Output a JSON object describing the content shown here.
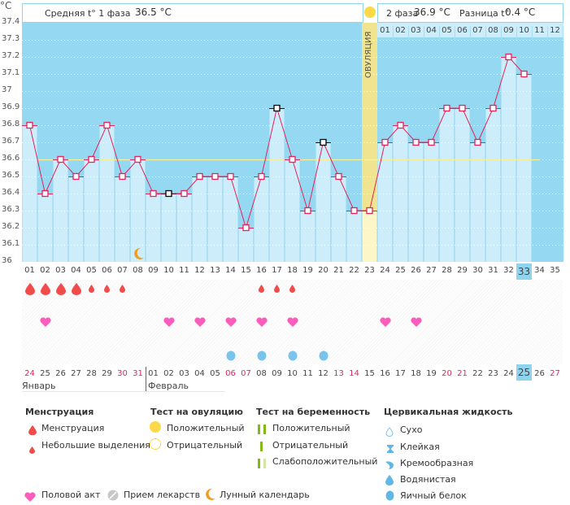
{
  "unit_label": "°C",
  "header": {
    "phase1_label": "Средняя t° 1 фаза",
    "phase1_value": "36.5 °C",
    "phase2_label": "2 фаза",
    "phase2_value": "36.9 °C",
    "diff_label": "Разница t°",
    "diff_value": "0.4 °C",
    "ovulation_label": "ОВУЛЯЦИЯ"
  },
  "phase2_day_labels": [
    "01",
    "02",
    "03",
    "04",
    "05",
    "06",
    "07",
    "08",
    "09",
    "10",
    "11",
    "12"
  ],
  "colors": {
    "sky": "#94d8f1",
    "bar": "#cdedfb",
    "line": "#e3245a",
    "ovulation": "#f5e58a",
    "coverline": "#f3ef9a",
    "highlight": "#8fd4ef",
    "weekend": "#e3245a"
  },
  "chart_data": {
    "type": "line",
    "title": "",
    "xlabel": "День цикла",
    "ylabel": "°C",
    "ylim": [
      36.0,
      37.4
    ],
    "y_ticks": [
      "37.4",
      "37.3",
      "37.2",
      "37.1",
      "37",
      "36.9",
      "36.8",
      "36.7",
      "36.6",
      "36.5",
      "36.4",
      "36.3",
      "36.2",
      "36.1",
      "36"
    ],
    "cycle_days": [
      "01",
      "02",
      "03",
      "04",
      "05",
      "06",
      "07",
      "08",
      "09",
      "10",
      "11",
      "12",
      "13",
      "14",
      "15",
      "16",
      "17",
      "18",
      "19",
      "20",
      "21",
      "22",
      "23",
      "24",
      "25",
      "26",
      "27",
      "28",
      "29",
      "30",
      "31",
      "32",
      "33",
      "34",
      "35"
    ],
    "current_day": "33",
    "series": [
      {
        "name": "Базальная температура",
        "values": [
          36.8,
          36.4,
          36.6,
          36.5,
          36.6,
          36.8,
          36.5,
          36.6,
          36.4,
          36.4,
          36.4,
          36.5,
          36.5,
          36.5,
          36.2,
          36.5,
          36.9,
          36.6,
          36.3,
          36.7,
          36.5,
          36.3,
          36.3,
          36.7,
          36.8,
          36.7,
          36.7,
          36.9,
          36.9,
          36.7,
          36.9,
          37.2,
          37.1
        ],
        "questionable_days": [
          10,
          17,
          20
        ]
      }
    ],
    "coverline": 36.6,
    "coverline_range_days": [
      2,
      33
    ],
    "ovulation_day": 23,
    "moon_days": [
      8
    ],
    "grid": true
  },
  "symptoms": {
    "menstruation_heavy_days": [
      1,
      2,
      3,
      4
    ],
    "menstruation_light_days": [
      5,
      6,
      7,
      16,
      17,
      18
    ],
    "intercourse_days": [
      2,
      10,
      12,
      14,
      16,
      18,
      24,
      26
    ],
    "cervical_egg_white_days": [
      14,
      16,
      18,
      20
    ]
  },
  "calendar": {
    "dates": [
      "24",
      "25",
      "26",
      "27",
      "28",
      "29",
      "30",
      "31",
      "01",
      "02",
      "03",
      "04",
      "05",
      "06",
      "07",
      "08",
      "09",
      "10",
      "11",
      "12",
      "13",
      "14",
      "15",
      "16",
      "17",
      "18",
      "19",
      "20",
      "21",
      "22",
      "23",
      "24",
      "25",
      "26",
      "27"
    ],
    "weekend_indices": [
      0,
      6,
      7,
      13,
      14,
      20,
      21,
      27,
      28,
      34
    ],
    "today_index": 32,
    "months": [
      {
        "label": "Январь",
        "start_index": 0
      },
      {
        "label": "Февраль",
        "start_index": 8
      }
    ]
  },
  "legend": {
    "menstruation": {
      "title": "Менструация",
      "items": [
        "Менструация",
        "Небольшие выделения"
      ]
    },
    "ovulation_test": {
      "title": "Тест на овуляцию",
      "items": [
        "Положительный",
        "Отрицательный"
      ]
    },
    "pregnancy_test": {
      "title": "Тест на беременность",
      "items": [
        "Положительный",
        "Отрицательный",
        "Слабоположительный"
      ]
    },
    "cervical_fluid": {
      "title": "Цервикальная жидкость",
      "items": [
        "Сухо",
        "Клейкая",
        "Кремообразная",
        "Водянистая",
        "Яичный белок"
      ]
    },
    "other": [
      "Половой акт",
      "Прием лекарств",
      "Лунный календарь"
    ]
  }
}
